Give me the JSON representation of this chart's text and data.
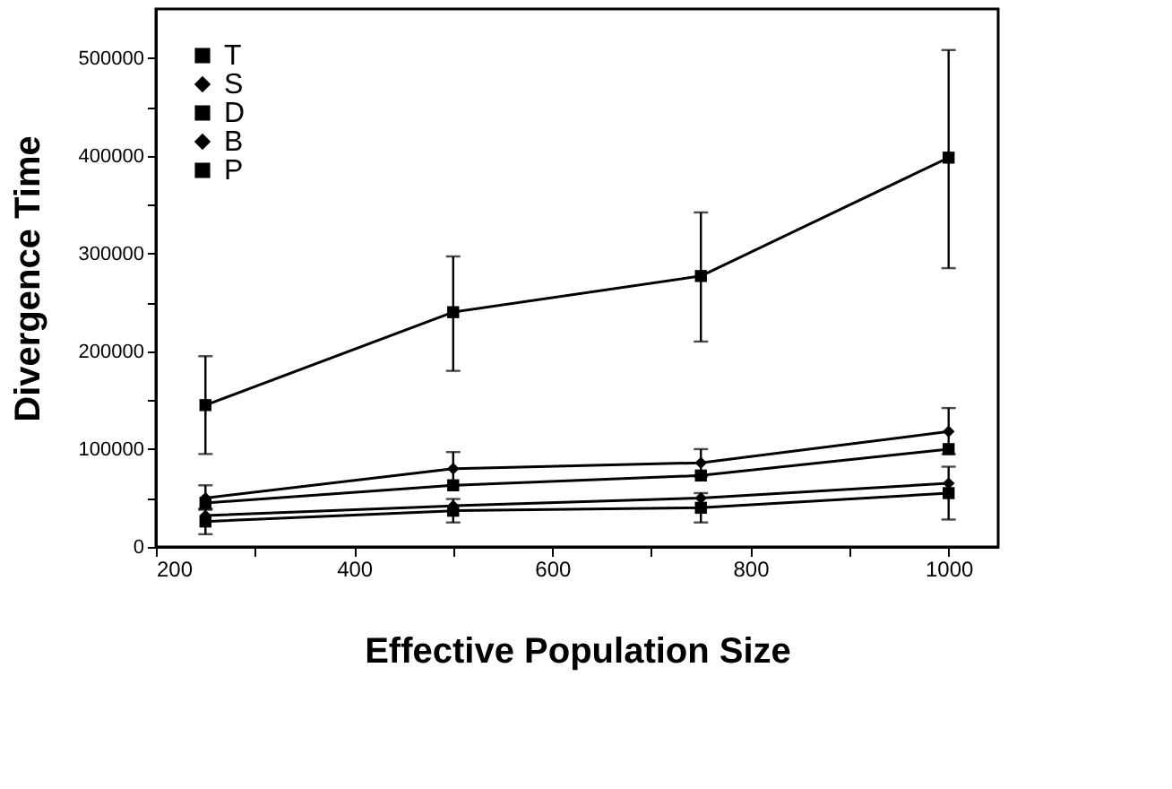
{
  "chart_data": {
    "type": "line",
    "xlabel": "Effective Population Size",
    "ylabel": "Divergence Time",
    "x": [
      250,
      500,
      750,
      1000
    ],
    "xlim": [
      200,
      1050
    ],
    "xticks": [
      200,
      {
        "value": 300,
        "label": null
      },
      400,
      {
        "value": 500,
        "label": null
      },
      600,
      {
        "value": 700,
        "label": null
      },
      800,
      {
        "value": 900,
        "label": null
      },
      1000
    ],
    "ylim": [
      0,
      550000
    ],
    "yticks": [
      0,
      {
        "value": 50000,
        "label": null
      },
      100000,
      {
        "value": 150000,
        "label": null
      },
      200000,
      {
        "value": 250000,
        "label": null
      },
      300000,
      {
        "value": 350000,
        "label": null
      },
      400000,
      {
        "value": 450000,
        "label": null
      },
      500000
    ],
    "legend": "top left",
    "grid": false,
    "line_style": "solid",
    "series": [
      {
        "name": "T",
        "color": "#000000",
        "marker": "square",
        "values": [
          26000,
          37000,
          40000,
          55000
        ],
        "errors": [
          [
            13000,
            39000
          ],
          [
            25000,
            49000
          ],
          [
            25000,
            55000
          ],
          [
            28000,
            82000
          ]
        ]
      },
      {
        "name": "S",
        "color": "#000000",
        "marker": "diamond",
        "values": [
          50000,
          80000,
          86000,
          118000
        ],
        "errors": [
          [
            38000,
            63000
          ],
          [
            63000,
            97000
          ],
          [
            72000,
            100000
          ],
          [
            95000,
            142000
          ]
        ]
      },
      {
        "name": "D",
        "color": "#000000",
        "marker": "square",
        "values": [
          45000,
          63000,
          73000,
          100000
        ]
      },
      {
        "name": "B",
        "color": "#000000",
        "marker": "diamond",
        "values": [
          32000,
          42000,
          50000,
          65000
        ]
      },
      {
        "name": "P",
        "color": "#000000",
        "marker": "square",
        "values": [
          145000,
          240000,
          277000,
          398000
        ],
        "errors": [
          [
            95000,
            195000
          ],
          [
            180000,
            297000
          ],
          [
            210000,
            342000
          ],
          [
            285000,
            508000
          ]
        ]
      }
    ]
  }
}
